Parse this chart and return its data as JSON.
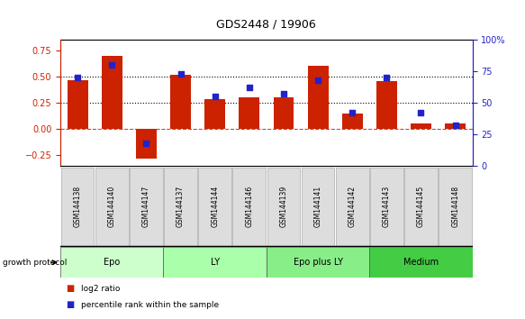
{
  "title": "GDS2448 / 19906",
  "samples": [
    "GSM144138",
    "GSM144140",
    "GSM144147",
    "GSM144137",
    "GSM144144",
    "GSM144146",
    "GSM144139",
    "GSM144141",
    "GSM144142",
    "GSM144143",
    "GSM144145",
    "GSM144148"
  ],
  "log2_ratio": [
    0.47,
    0.7,
    -0.28,
    0.52,
    0.29,
    0.3,
    0.3,
    0.6,
    0.15,
    0.46,
    0.05,
    0.05
  ],
  "percentile_rank": [
    70,
    80,
    18,
    73,
    55,
    62,
    57,
    68,
    42,
    70,
    42,
    32
  ],
  "groups": [
    {
      "label": "Epo",
      "start": 0,
      "end": 3,
      "color": "#ccffcc"
    },
    {
      "label": "LY",
      "start": 3,
      "end": 6,
      "color": "#aaffaa"
    },
    {
      "label": "Epo plus LY",
      "start": 6,
      "end": 9,
      "color": "#88ee88"
    },
    {
      "label": "Medium",
      "start": 9,
      "end": 12,
      "color": "#44cc44"
    }
  ],
  "bar_color": "#cc2200",
  "dot_color": "#2222cc",
  "ylim_left": [
    -0.35,
    0.85
  ],
  "ylim_right": [
    0,
    100
  ],
  "yticks_left": [
    -0.25,
    0.0,
    0.25,
    0.5,
    0.75
  ],
  "yticks_right": [
    0,
    25,
    50,
    75,
    100
  ],
  "hlines": [
    0.25,
    0.5
  ],
  "zero_line": 0.0,
  "bg_color": "#ffffff",
  "bar_width": 0.6,
  "growth_protocol_label": "growth protocol",
  "legend_items": [
    {
      "color": "#cc2200",
      "label": "log2 ratio"
    },
    {
      "color": "#2222cc",
      "label": "percentile rank within the sample"
    }
  ]
}
